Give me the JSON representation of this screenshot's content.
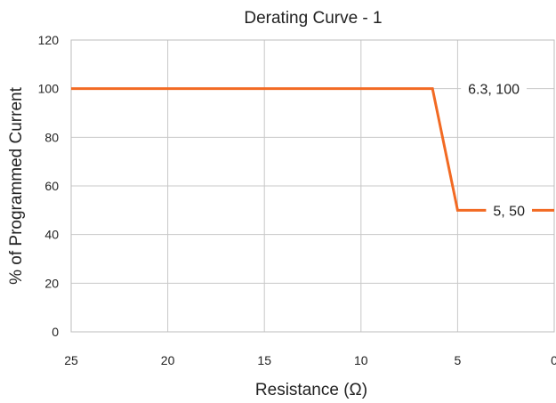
{
  "chart_data": {
    "type": "line",
    "title": "Derating Curve - 1",
    "xlabel": "Resistance (Ω)",
    "ylabel": "% of Programmed Current",
    "xlim": [
      25,
      0
    ],
    "x_reversed": true,
    "ylim": [
      0,
      120
    ],
    "xticks": [
      25,
      20,
      15,
      10,
      5,
      0
    ],
    "xtick_labels": [
      "25",
      "20",
      "15",
      "10",
      "5",
      "0"
    ],
    "yticks": [
      0,
      20,
      40,
      60,
      80,
      100,
      120
    ],
    "ytick_labels": [
      "0",
      "20",
      "40",
      "60",
      "80",
      "100",
      "120"
    ],
    "grid": true,
    "legend": "none",
    "series": [
      {
        "color": "#f26a23",
        "points": [
          {
            "x": 25,
            "y": 100
          },
          {
            "x": 6.3,
            "y": 100
          },
          {
            "x": 5,
            "y": 50
          },
          {
            "x": 0,
            "y": 50
          }
        ]
      }
    ],
    "annotations": [
      {
        "text": "6.3, 100",
        "x": 6.3,
        "y": 100
      },
      {
        "text": "5, 50",
        "x": 5,
        "y": 50
      }
    ]
  }
}
